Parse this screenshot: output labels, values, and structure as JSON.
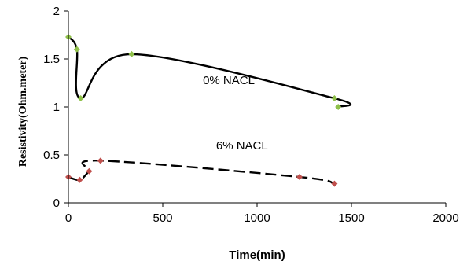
{
  "chart_data": {
    "type": "scatter",
    "xlabel": "Time(min)",
    "ylabel": "Resistivity(Ohm.meter)",
    "xlim": [
      0,
      2000
    ],
    "ylim": [
      0,
      2
    ],
    "xticks": [
      "0",
      "500",
      "1000",
      "1500",
      "2000"
    ],
    "yticks": [
      "0",
      "0.5",
      "1",
      "1.5",
      "2"
    ],
    "grid": false,
    "legend": "none",
    "series": [
      {
        "label": "0% NACL",
        "color": "#8fc04a",
        "line_color": "#000000",
        "line_style": "solid",
        "marker": "diamond",
        "x": [
          0,
          45,
          65,
          335,
          1410,
          1430
        ],
        "y": [
          1.73,
          1.6,
          1.09,
          1.55,
          1.09,
          1.0
        ]
      },
      {
        "label": "6% NACL",
        "color": "#c0504d",
        "line_color": "#000000",
        "line_style": "dashed",
        "marker": "diamond",
        "x": [
          0,
          60,
          110,
          170,
          1225,
          1410
        ],
        "y": [
          0.27,
          0.24,
          0.33,
          0.44,
          0.27,
          0.2
        ]
      }
    ],
    "annotations": [
      {
        "text": "0% NACL",
        "x": 850,
        "y": 1.28
      },
      {
        "text": "6% NACL",
        "x": 920,
        "y": 0.6
      }
    ]
  }
}
